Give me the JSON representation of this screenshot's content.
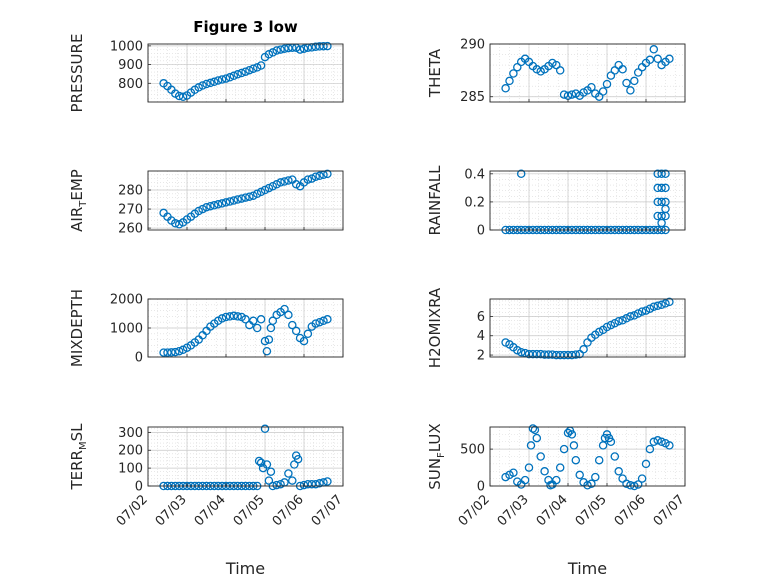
{
  "figure": {
    "title": "Figure 3 low"
  },
  "chart_data": [
    {
      "id": "pressure",
      "type": "scatter",
      "title": "Figure 3 low",
      "ylabel": "PRESSURE",
      "ylim": [
        700,
        1010
      ],
      "yticks": [
        800,
        900,
        1000
      ],
      "grid": true,
      "x": [
        2.4,
        2.5,
        2.6,
        2.7,
        2.8,
        2.9,
        3.0,
        3.1,
        3.2,
        3.3,
        3.4,
        3.5,
        3.6,
        3.7,
        3.8,
        3.9,
        4.0,
        4.1,
        4.2,
        4.3,
        4.4,
        4.5,
        4.6,
        4.7,
        4.8,
        4.9,
        5.0,
        5.1,
        5.2,
        5.3,
        5.4,
        5.5,
        5.6,
        5.7,
        5.8,
        5.9,
        6.0,
        6.1,
        6.2,
        6.3,
        6.4,
        6.5,
        6.6
      ],
      "y": [
        800,
        785,
        765,
        745,
        732,
        728,
        735,
        750,
        765,
        778,
        788,
        796,
        802,
        808,
        815,
        820,
        825,
        832,
        840,
        848,
        855,
        862,
        870,
        878,
        885,
        895,
        940,
        955,
        965,
        975,
        980,
        985,
        988,
        990,
        990,
        980,
        985,
        990,
        992,
        995,
        997,
        998,
        999
      ]
    },
    {
      "id": "theta",
      "type": "scatter",
      "ylabel": "THETA",
      "ylim": [
        284.5,
        290
      ],
      "yticks": [
        285,
        290
      ],
      "grid": true,
      "x": [
        2.4,
        2.5,
        2.6,
        2.7,
        2.8,
        2.9,
        3.0,
        3.1,
        3.2,
        3.3,
        3.4,
        3.5,
        3.6,
        3.7,
        3.8,
        3.9,
        4.0,
        4.1,
        4.2,
        4.3,
        4.4,
        4.5,
        4.6,
        4.7,
        4.8,
        4.9,
        5.0,
        5.1,
        5.2,
        5.3,
        5.4,
        5.5,
        5.6,
        5.7,
        5.8,
        5.9,
        6.0,
        6.1,
        6.2,
        6.3,
        6.4,
        6.5,
        6.6
      ],
      "y": [
        285.8,
        286.5,
        287.2,
        287.8,
        288.3,
        288.6,
        288.3,
        287.9,
        287.6,
        287.4,
        287.6,
        287.9,
        288.2,
        288.0,
        287.5,
        285.2,
        285.1,
        285.2,
        285.3,
        285.1,
        285.4,
        285.6,
        285.9,
        285.3,
        285.0,
        285.5,
        286.2,
        287.0,
        287.5,
        288.0,
        287.6,
        286.3,
        285.6,
        286.5,
        287.3,
        287.8,
        288.2,
        288.5,
        289.5,
        288.6,
        288.0,
        288.3,
        288.6
      ]
    },
    {
      "id": "air_temp",
      "type": "scatter",
      "ylabel": "AIR",
      "ylabel_sub": "T",
      "ylabel_suffix": "EMP",
      "ylim": [
        259,
        290
      ],
      "yticks": [
        260,
        270,
        280
      ],
      "grid": true,
      "x": [
        2.4,
        2.5,
        2.6,
        2.7,
        2.8,
        2.9,
        3.0,
        3.1,
        3.2,
        3.3,
        3.4,
        3.5,
        3.6,
        3.7,
        3.8,
        3.9,
        4.0,
        4.1,
        4.2,
        4.3,
        4.4,
        4.5,
        4.6,
        4.7,
        4.8,
        4.9,
        5.0,
        5.1,
        5.2,
        5.3,
        5.4,
        5.5,
        5.6,
        5.7,
        5.8,
        5.9,
        6.0,
        6.1,
        6.2,
        6.3,
        6.4,
        6.5,
        6.6
      ],
      "y": [
        268,
        266,
        264,
        262.5,
        262,
        263,
        264.5,
        266,
        267.5,
        269,
        270,
        271,
        271.5,
        272,
        272.5,
        273,
        273.5,
        274,
        274.5,
        275,
        275.5,
        276,
        276.5,
        277,
        278,
        279,
        280,
        281,
        282,
        283,
        284,
        284.5,
        285,
        285.5,
        283,
        282,
        284,
        285.5,
        286,
        287,
        287.5,
        288,
        288.5
      ]
    },
    {
      "id": "rainfall",
      "type": "scatter",
      "ylabel": "RAINFALL",
      "ylim": [
        0,
        0.42
      ],
      "yticks": [
        0,
        0.2,
        0.4
      ],
      "grid": true,
      "x": [
        2.4,
        2.5,
        2.6,
        2.7,
        2.8,
        2.9,
        3.0,
        3.1,
        3.2,
        3.3,
        3.4,
        3.5,
        3.6,
        3.7,
        3.8,
        3.9,
        4.0,
        4.1,
        4.2,
        4.3,
        4.4,
        4.5,
        4.6,
        4.7,
        4.8,
        4.9,
        5.0,
        5.1,
        5.2,
        5.3,
        5.4,
        5.5,
        5.6,
        5.7,
        5.8,
        5.9,
        6.0,
        6.1,
        6.2,
        6.3,
        6.3,
        6.3,
        6.3,
        6.4,
        6.4,
        6.4,
        6.4,
        6.4,
        6.5,
        6.5,
        6.5,
        6.5,
        6.5,
        6.3,
        6.4,
        6.5,
        2.8
      ],
      "y": [
        0,
        0,
        0,
        0,
        0,
        0,
        0,
        0,
        0,
        0,
        0,
        0,
        0,
        0,
        0,
        0,
        0,
        0,
        0,
        0,
        0,
        0,
        0,
        0,
        0,
        0,
        0,
        0,
        0,
        0,
        0,
        0,
        0,
        0,
        0,
        0,
        0,
        0,
        0,
        0.1,
        0.2,
        0.3,
        0.4,
        0.1,
        0.2,
        0.3,
        0.4,
        0.05,
        0.1,
        0.2,
        0.3,
        0.4,
        0.15,
        0.0,
        0.0,
        0.0,
        0.4
      ]
    },
    {
      "id": "mixdepth",
      "type": "scatter",
      "ylabel": "MIXDEPTH",
      "ylim": [
        0,
        2000
      ],
      "yticks": [
        0,
        1000,
        2000
      ],
      "grid": true,
      "x": [
        2.4,
        2.5,
        2.6,
        2.7,
        2.8,
        2.9,
        3.0,
        3.1,
        3.2,
        3.3,
        3.4,
        3.5,
        3.6,
        3.7,
        3.8,
        3.9,
        4.0,
        4.1,
        4.2,
        4.3,
        4.4,
        4.5,
        4.6,
        4.7,
        4.8,
        4.9,
        5.0,
        5.05,
        5.1,
        5.15,
        5.2,
        5.3,
        5.4,
        5.5,
        5.6,
        5.7,
        5.8,
        5.9,
        6.0,
        6.1,
        6.2,
        6.3,
        6.4,
        6.5,
        6.6
      ],
      "y": [
        150,
        150,
        160,
        170,
        200,
        250,
        320,
        400,
        500,
        600,
        750,
        900,
        1050,
        1150,
        1250,
        1330,
        1380,
        1400,
        1420,
        1400,
        1380,
        1300,
        1100,
        1250,
        1000,
        1300,
        550,
        200,
        600,
        1000,
        1250,
        1450,
        1550,
        1650,
        1450,
        1100,
        900,
        650,
        550,
        800,
        1050,
        1150,
        1200,
        1250,
        1300
      ]
    },
    {
      "id": "h2omixra",
      "type": "scatter",
      "ylabel": "H2OMIXRA",
      "ylim": [
        1.8,
        7.8
      ],
      "yticks": [
        2,
        4,
        6
      ],
      "grid": true,
      "x": [
        2.4,
        2.5,
        2.6,
        2.7,
        2.8,
        2.9,
        3.0,
        3.1,
        3.2,
        3.3,
        3.4,
        3.5,
        3.6,
        3.7,
        3.8,
        3.9,
        4.0,
        4.1,
        4.2,
        4.3,
        4.4,
        4.5,
        4.6,
        4.7,
        4.8,
        4.9,
        5.0,
        5.1,
        5.2,
        5.3,
        5.4,
        5.5,
        5.6,
        5.7,
        5.8,
        5.9,
        6.0,
        6.1,
        6.2,
        6.3,
        6.4,
        6.5,
        6.6
      ],
      "y": [
        3.3,
        3.1,
        2.8,
        2.5,
        2.3,
        2.2,
        2.1,
        2.1,
        2.1,
        2.1,
        2.05,
        2.05,
        2.05,
        2.0,
        2.0,
        2.0,
        2.0,
        2.0,
        2.05,
        2.1,
        2.6,
        3.3,
        3.8,
        4.1,
        4.4,
        4.6,
        4.9,
        5.1,
        5.3,
        5.5,
        5.6,
        5.8,
        6.0,
        6.1,
        6.3,
        6.5,
        6.6,
        6.8,
        7.0,
        7.1,
        7.2,
        7.35,
        7.5
      ]
    },
    {
      "id": "terr_msl",
      "type": "scatter",
      "ylabel": "TERR",
      "ylabel_sub": "M",
      "ylabel_suffix": "SL",
      "ylim": [
        0,
        330
      ],
      "yticks": [
        0,
        100,
        200,
        300
      ],
      "grid": true,
      "x": [
        2.4,
        2.5,
        2.6,
        2.7,
        2.8,
        2.9,
        3.0,
        3.1,
        3.2,
        3.3,
        3.4,
        3.5,
        3.6,
        3.7,
        3.8,
        3.9,
        4.0,
        4.1,
        4.2,
        4.3,
        4.4,
        4.5,
        4.6,
        4.7,
        4.8,
        4.85,
        4.9,
        4.95,
        5.0,
        5.05,
        5.1,
        5.15,
        5.2,
        5.3,
        5.4,
        5.5,
        5.6,
        5.7,
        5.75,
        5.8,
        5.85,
        5.9,
        6.0,
        6.1,
        6.2,
        6.3,
        6.4,
        6.5,
        6.6
      ],
      "y": [
        0,
        0,
        0,
        0,
        0,
        0,
        0,
        0,
        0,
        0,
        0,
        0,
        0,
        0,
        0,
        0,
        0,
        0,
        0,
        0,
        0,
        0,
        0,
        0,
        0,
        140,
        130,
        100,
        320,
        120,
        30,
        80,
        0,
        5,
        10,
        20,
        70,
        30,
        120,
        170,
        150,
        0,
        5,
        10,
        10,
        10,
        15,
        20,
        25
      ]
    },
    {
      "id": "sun_flux",
      "type": "scatter",
      "ylabel": "SUN",
      "ylabel_sub": "F",
      "ylabel_suffix": "LUX",
      "ylim": [
        0,
        800
      ],
      "yticks": [
        0,
        500
      ],
      "grid": true,
      "x": [
        2.4,
        2.5,
        2.6,
        2.7,
        2.8,
        2.9,
        3.0,
        3.05,
        3.1,
        3.15,
        3.2,
        3.3,
        3.4,
        3.5,
        3.55,
        3.6,
        3.7,
        3.8,
        3.9,
        4.0,
        4.05,
        4.1,
        4.15,
        4.2,
        4.3,
        4.4,
        4.5,
        4.6,
        4.7,
        4.8,
        4.9,
        4.95,
        5.0,
        5.05,
        5.1,
        5.2,
        5.3,
        5.4,
        5.5,
        5.6,
        5.7,
        5.8,
        5.9,
        6.0,
        6.1,
        6.2,
        6.3,
        6.4,
        6.5,
        6.6
      ],
      "y": [
        120,
        150,
        180,
        60,
        20,
        80,
        250,
        550,
        780,
        760,
        650,
        400,
        200,
        80,
        10,
        20,
        80,
        250,
        500,
        720,
        750,
        700,
        550,
        350,
        150,
        50,
        10,
        30,
        120,
        350,
        550,
        650,
        700,
        650,
        600,
        400,
        200,
        100,
        30,
        10,
        0,
        20,
        100,
        300,
        500,
        600,
        620,
        600,
        580,
        550
      ]
    }
  ],
  "x_axis": {
    "ticks": [
      2,
      3,
      4,
      5,
      6,
      7
    ],
    "tick_labels": [
      "07/02",
      "07/03",
      "07/04",
      "07/05",
      "07/06",
      "07/07"
    ],
    "label": "Time"
  }
}
